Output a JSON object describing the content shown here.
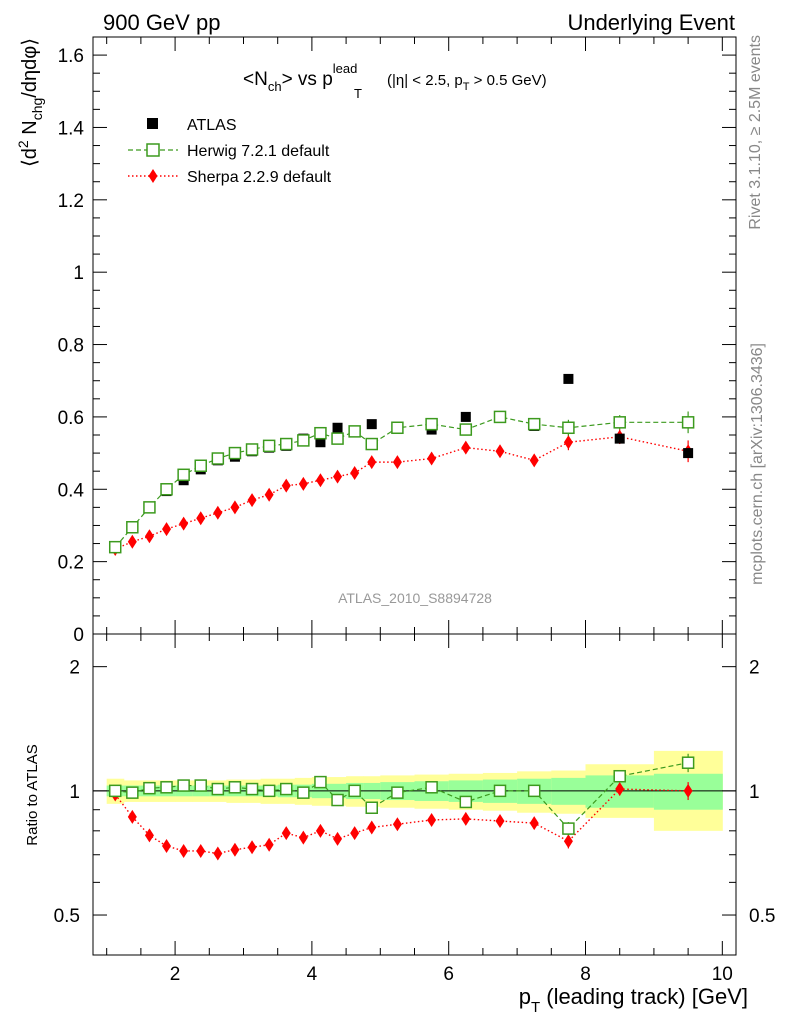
{
  "header": {
    "left": "900 GeV pp",
    "right": "Underlying Event"
  },
  "side": {
    "rivet": "Rivet 3.1.10, ≥ 2.5M events",
    "mcplots": "mcplots.cern.ch [arXiv:1306.3436]"
  },
  "chart_data": [
    {
      "type": "scatter",
      "title": "<N_ch> vs p_T^lead (|η| < 2.5, p_T > 0.5 GeV)",
      "title_main": "<N",
      "title_sub1": "ch",
      "title_mid": "> vs p",
      "title_sup": "lead",
      "title_sub2": "T",
      "title_cut_a": "(|η| < 2.5, p",
      "title_cut_sub": "T",
      "title_cut_b": " > 0.5 GeV)",
      "ylabel": "⟨d² N_chg/dηdφ⟩",
      "ylabel_a": "⟨d",
      "ylabel_sup": "2",
      "ylabel_b": " N",
      "ylabel_sub": "chg",
      "ylabel_c": "/dηdφ⟩",
      "watermark": "ATLAS_2010_S8894728",
      "xlim": [
        0.8,
        10.2
      ],
      "ylim": [
        0,
        1.65
      ],
      "y_ticks": [
        0,
        0.2,
        0.4,
        0.6,
        0.8,
        1,
        1.2,
        1.4,
        1.6
      ],
      "y_tick_labels": [
        "0",
        "0.2",
        "0.4",
        "0.6",
        "0.8",
        "1",
        "1.2",
        "1.4",
        "1.6"
      ],
      "legend_position": "top-left",
      "x": [
        1.125,
        1.375,
        1.625,
        1.875,
        2.125,
        2.375,
        2.625,
        2.875,
        3.125,
        3.375,
        3.625,
        3.875,
        4.125,
        4.375,
        4.625,
        4.875,
        5.25,
        5.75,
        6.25,
        6.75,
        7.25,
        7.75,
        8.5,
        9.5
      ],
      "series": [
        {
          "name": "ATLAS",
          "color": "#000000",
          "marker": "filled-square",
          "values": [
            0.24,
            0.295,
            0.35,
            0.395,
            0.425,
            0.455,
            0.48,
            0.49,
            0.505,
            0.515,
            0.52,
            0.54,
            0.53,
            0.57,
            0.56,
            0.58,
            0.57,
            0.565,
            0.6,
            0.6,
            0.575,
            0.705,
            0.54,
            0.5
          ]
        },
        {
          "name": "Herwig 7.2.1 default",
          "color": "#3c9a1e",
          "marker": "open-square",
          "line": "dashed",
          "values": [
            0.24,
            0.295,
            0.35,
            0.4,
            0.44,
            0.465,
            0.485,
            0.5,
            0.51,
            0.52,
            0.525,
            0.535,
            0.555,
            0.54,
            0.56,
            0.525,
            0.57,
            0.58,
            0.565,
            0.6,
            0.58,
            0.57,
            0.585,
            0.585
          ],
          "errors": [
            0.004,
            0.004,
            0.004,
            0.004,
            0.004,
            0.004,
            0.004,
            0.004,
            0.004,
            0.004,
            0.004,
            0.004,
            0.005,
            0.005,
            0.006,
            0.006,
            0.007,
            0.008,
            0.009,
            0.011,
            0.014,
            0.022,
            0.02,
            0.03
          ]
        },
        {
          "name": "Sherpa 2.2.9 default",
          "color": "#ff0000",
          "marker": "filled-diamond",
          "line": "dotted",
          "values": [
            0.235,
            0.255,
            0.27,
            0.29,
            0.305,
            0.32,
            0.335,
            0.35,
            0.37,
            0.385,
            0.41,
            0.415,
            0.425,
            0.435,
            0.445,
            0.475,
            0.475,
            0.485,
            0.515,
            0.505,
            0.48,
            0.53,
            0.545,
            0.505
          ],
          "errors": [
            0.004,
            0.004,
            0.004,
            0.004,
            0.004,
            0.004,
            0.004,
            0.004,
            0.004,
            0.004,
            0.004,
            0.004,
            0.005,
            0.005,
            0.006,
            0.006,
            0.007,
            0.008,
            0.009,
            0.011,
            0.014,
            0.022,
            0.02,
            0.03
          ]
        }
      ]
    },
    {
      "type": "scatter",
      "ylabel": "Ratio to ATLAS",
      "xlabel": "p_T (leading track) [GeV]",
      "xlabel_a": "p",
      "xlabel_sub": "T",
      "xlabel_b": " (leading track) [GeV]",
      "xlim": [
        0.8,
        10.2
      ],
      "ylim": [
        0.4,
        2.4
      ],
      "log_y": true,
      "x_ticks": [
        2,
        4,
        6,
        8,
        10
      ],
      "x_tick_labels": [
        "2",
        "4",
        "6",
        "8",
        "10"
      ],
      "y_ticks": [
        0.5,
        1,
        2
      ],
      "y_tick_labels": [
        "0.5",
        "1",
        "2"
      ],
      "reference_line": 1,
      "bins": [
        [
          1.0,
          1.25
        ],
        [
          1.25,
          1.5
        ],
        [
          1.5,
          1.75
        ],
        [
          1.75,
          2.0
        ],
        [
          2.0,
          2.25
        ],
        [
          2.25,
          2.5
        ],
        [
          2.5,
          2.75
        ],
        [
          2.75,
          3.0
        ],
        [
          3.0,
          3.25
        ],
        [
          3.25,
          3.5
        ],
        [
          3.5,
          3.75
        ],
        [
          3.75,
          4.0
        ],
        [
          4.0,
          4.25
        ],
        [
          4.25,
          4.5
        ],
        [
          4.5,
          4.75
        ],
        [
          4.75,
          5.0
        ],
        [
          5.0,
          5.5
        ],
        [
          5.5,
          6.0
        ],
        [
          6.0,
          6.5
        ],
        [
          6.5,
          7.0
        ],
        [
          7.0,
          7.5
        ],
        [
          7.5,
          8.0
        ],
        [
          8.0,
          9.0
        ],
        [
          9.0,
          10.0
        ]
      ],
      "band_inner": [
        [
          0.97,
          1.03
        ],
        [
          0.97,
          1.03
        ],
        [
          0.97,
          1.03
        ],
        [
          0.97,
          1.03
        ],
        [
          0.97,
          1.03
        ],
        [
          0.97,
          1.03
        ],
        [
          0.97,
          1.03
        ],
        [
          0.97,
          1.03
        ],
        [
          0.97,
          1.03
        ],
        [
          0.97,
          1.03
        ],
        [
          0.965,
          1.035
        ],
        [
          0.965,
          1.035
        ],
        [
          0.96,
          1.04
        ],
        [
          0.96,
          1.04
        ],
        [
          0.955,
          1.045
        ],
        [
          0.955,
          1.045
        ],
        [
          0.95,
          1.05
        ],
        [
          0.945,
          1.055
        ],
        [
          0.94,
          1.06
        ],
        [
          0.935,
          1.065
        ],
        [
          0.93,
          1.07
        ],
        [
          0.925,
          1.075
        ],
        [
          0.91,
          1.09
        ],
        [
          0.9,
          1.1
        ]
      ],
      "band_outer": [
        [
          0.93,
          1.07
        ],
        [
          0.94,
          1.06
        ],
        [
          0.94,
          1.06
        ],
        [
          0.94,
          1.06
        ],
        [
          0.94,
          1.06
        ],
        [
          0.94,
          1.06
        ],
        [
          0.94,
          1.06
        ],
        [
          0.935,
          1.065
        ],
        [
          0.935,
          1.065
        ],
        [
          0.93,
          1.07
        ],
        [
          0.93,
          1.07
        ],
        [
          0.925,
          1.075
        ],
        [
          0.92,
          1.08
        ],
        [
          0.92,
          1.08
        ],
        [
          0.915,
          1.085
        ],
        [
          0.915,
          1.085
        ],
        [
          0.91,
          1.09
        ],
        [
          0.905,
          1.095
        ],
        [
          0.9,
          1.1
        ],
        [
          0.895,
          1.105
        ],
        [
          0.885,
          1.115
        ],
        [
          0.88,
          1.12
        ],
        [
          0.86,
          1.16
        ],
        [
          0.8,
          1.25
        ]
      ],
      "band_inner_color": "#99ff99",
      "band_outer_color": "#ffff99",
      "series": [
        {
          "name": "Herwig 7.2.1 default",
          "color": "#3c9a1e",
          "values": [
            1.0,
            0.99,
            1.015,
            1.02,
            1.03,
            1.03,
            1.01,
            1.02,
            1.01,
            1.0,
            1.01,
            0.99,
            1.05,
            0.95,
            1.0,
            0.91,
            0.99,
            1.02,
            0.94,
            1.0,
            1.0,
            0.81,
            1.085,
            1.17
          ],
          "errors": [
            0.01,
            0.01,
            0.01,
            0.01,
            0.01,
            0.01,
            0.01,
            0.01,
            0.01,
            0.01,
            0.01,
            0.01,
            0.01,
            0.012,
            0.012,
            0.012,
            0.014,
            0.015,
            0.016,
            0.018,
            0.025,
            0.03,
            0.035,
            0.06
          ]
        },
        {
          "name": "Sherpa 2.2.9 default",
          "color": "#ff0000",
          "values": [
            0.98,
            0.865,
            0.78,
            0.735,
            0.715,
            0.715,
            0.705,
            0.72,
            0.73,
            0.74,
            0.79,
            0.77,
            0.8,
            0.765,
            0.79,
            0.815,
            0.83,
            0.85,
            0.855,
            0.845,
            0.835,
            0.755,
            1.01,
            1.0
          ],
          "errors": [
            0.01,
            0.01,
            0.01,
            0.01,
            0.01,
            0.01,
            0.01,
            0.01,
            0.01,
            0.01,
            0.01,
            0.01,
            0.01,
            0.012,
            0.012,
            0.012,
            0.014,
            0.015,
            0.016,
            0.018,
            0.025,
            0.03,
            0.035,
            0.05
          ]
        }
      ]
    }
  ]
}
